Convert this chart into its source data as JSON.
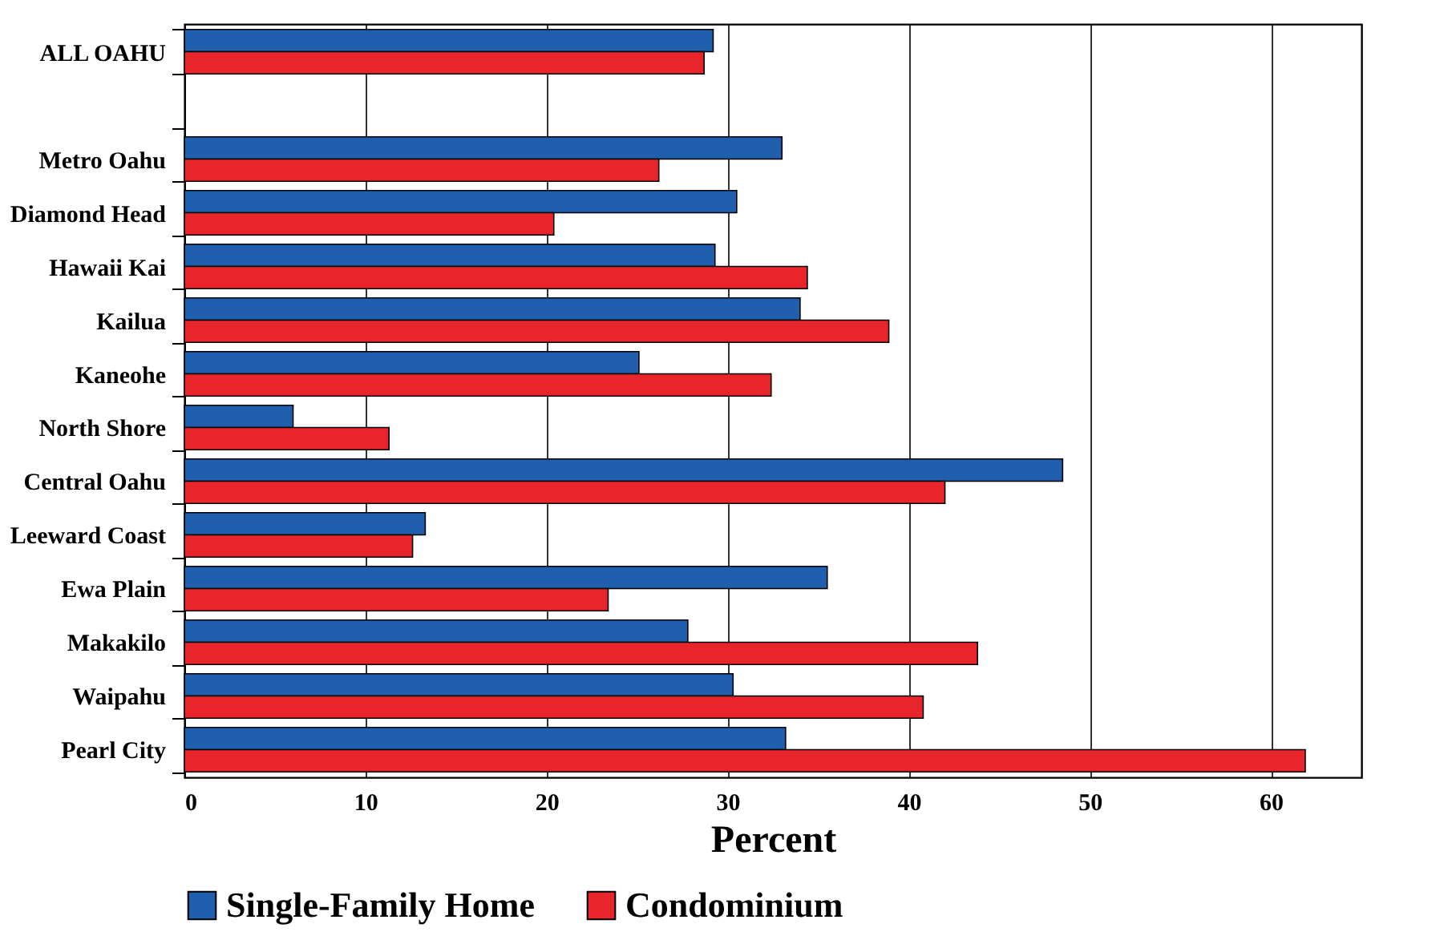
{
  "chart_data": {
    "type": "bar",
    "orientation": "horizontal",
    "xlabel": "Percent",
    "categories": [
      "ALL OAHU",
      null,
      "Metro Oahu",
      "Diamond Head",
      "Hawaii Kai",
      "Kailua",
      "Kaneohe",
      "North Shore",
      "Central Oahu",
      "Leeward Coast",
      "Ewa Plain",
      "Makakilo",
      "Waipahu",
      "Pearl City"
    ],
    "series": [
      {
        "name": "Single-Family Home",
        "color": "#1f5fae",
        "values": [
          29.2,
          null,
          33.0,
          30.5,
          29.3,
          34.0,
          25.1,
          6.0,
          48.5,
          13.3,
          35.5,
          27.8,
          30.3,
          33.2
        ]
      },
      {
        "name": "Condominium",
        "color": "#e8252b",
        "values": [
          28.7,
          null,
          26.2,
          20.4,
          34.4,
          38.9,
          32.4,
          11.3,
          42.0,
          12.6,
          23.4,
          43.8,
          40.8,
          61.9
        ]
      }
    ],
    "xlim": [
      0,
      65
    ],
    "xticks": [
      0,
      10,
      20,
      30,
      40,
      50,
      60
    ],
    "grid": "x",
    "legend": "bottom"
  }
}
